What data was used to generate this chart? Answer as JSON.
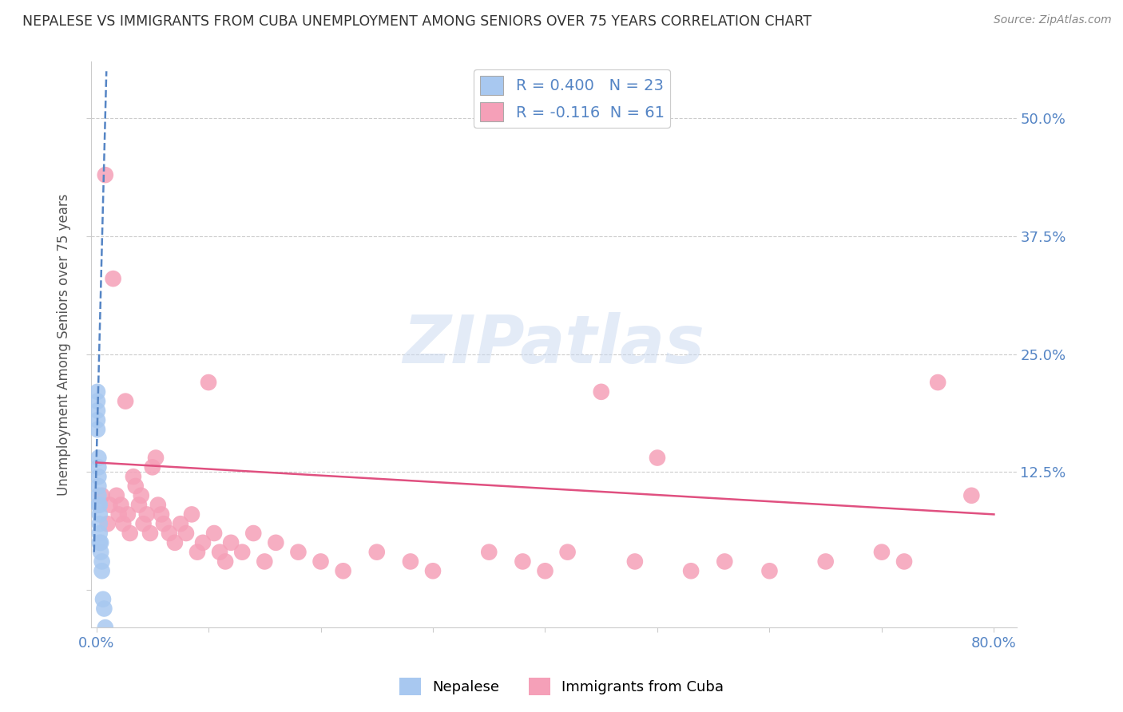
{
  "title": "NEPALESE VS IMMIGRANTS FROM CUBA UNEMPLOYMENT AMONG SENIORS OVER 75 YEARS CORRELATION CHART",
  "source": "Source: ZipAtlas.com",
  "ylabel": "Unemployment Among Seniors over 75 years",
  "xlim": [
    -0.005,
    0.82
  ],
  "ylim": [
    -0.04,
    0.56
  ],
  "nepalese_R": 0.4,
  "nepalese_N": 23,
  "cuba_R": -0.116,
  "cuba_N": 61,
  "nepalese_color": "#a8c8f0",
  "cuba_color": "#f5a0b8",
  "nepalese_trend_color": "#5585c5",
  "cuba_trend_color": "#e05080",
  "background_color": "#ffffff",
  "grid_color": "#cccccc",
  "ytick_color": "#5585c5",
  "xtick_color": "#5585c5",
  "nep_x": [
    0.001,
    0.001,
    0.001,
    0.001,
    0.001,
    0.002,
    0.002,
    0.002,
    0.002,
    0.002,
    0.002,
    0.003,
    0.003,
    0.003,
    0.003,
    0.003,
    0.004,
    0.004,
    0.005,
    0.005,
    0.006,
    0.007,
    0.008
  ],
  "nep_y": [
    0.17,
    0.18,
    0.19,
    0.2,
    0.21,
    0.09,
    0.1,
    0.11,
    0.12,
    0.13,
    0.14,
    0.05,
    0.06,
    0.07,
    0.08,
    0.09,
    0.04,
    0.05,
    0.02,
    0.03,
    -0.01,
    -0.02,
    -0.04
  ],
  "cuba_x": [
    0.005,
    0.008,
    0.01,
    0.012,
    0.015,
    0.018,
    0.02,
    0.022,
    0.024,
    0.026,
    0.028,
    0.03,
    0.033,
    0.035,
    0.038,
    0.04,
    0.042,
    0.045,
    0.048,
    0.05,
    0.053,
    0.055,
    0.058,
    0.06,
    0.065,
    0.07,
    0.075,
    0.08,
    0.085,
    0.09,
    0.095,
    0.1,
    0.105,
    0.11,
    0.115,
    0.12,
    0.13,
    0.14,
    0.15,
    0.16,
    0.18,
    0.2,
    0.22,
    0.25,
    0.28,
    0.3,
    0.35,
    0.38,
    0.4,
    0.42,
    0.45,
    0.48,
    0.5,
    0.53,
    0.56,
    0.6,
    0.65,
    0.7,
    0.72,
    0.75,
    0.78
  ],
  "cuba_y": [
    0.1,
    0.44,
    0.07,
    0.09,
    0.33,
    0.1,
    0.08,
    0.09,
    0.07,
    0.2,
    0.08,
    0.06,
    0.12,
    0.11,
    0.09,
    0.1,
    0.07,
    0.08,
    0.06,
    0.13,
    0.14,
    0.09,
    0.08,
    0.07,
    0.06,
    0.05,
    0.07,
    0.06,
    0.08,
    0.04,
    0.05,
    0.22,
    0.06,
    0.04,
    0.03,
    0.05,
    0.04,
    0.06,
    0.03,
    0.05,
    0.04,
    0.03,
    0.02,
    0.04,
    0.03,
    0.02,
    0.04,
    0.03,
    0.02,
    0.04,
    0.21,
    0.03,
    0.14,
    0.02,
    0.03,
    0.02,
    0.03,
    0.04,
    0.03,
    0.22,
    0.1
  ],
  "nep_trend_x": [
    -0.002,
    0.009
  ],
  "nep_trend_y": [
    0.04,
    0.55
  ],
  "cuba_trend_x": [
    0.0,
    0.8
  ],
  "cuba_trend_y": [
    0.135,
    0.08
  ],
  "watermark_text": "ZIPatlas",
  "watermark_color": "#c8d8f0",
  "legend_text_color": "#5585c5"
}
